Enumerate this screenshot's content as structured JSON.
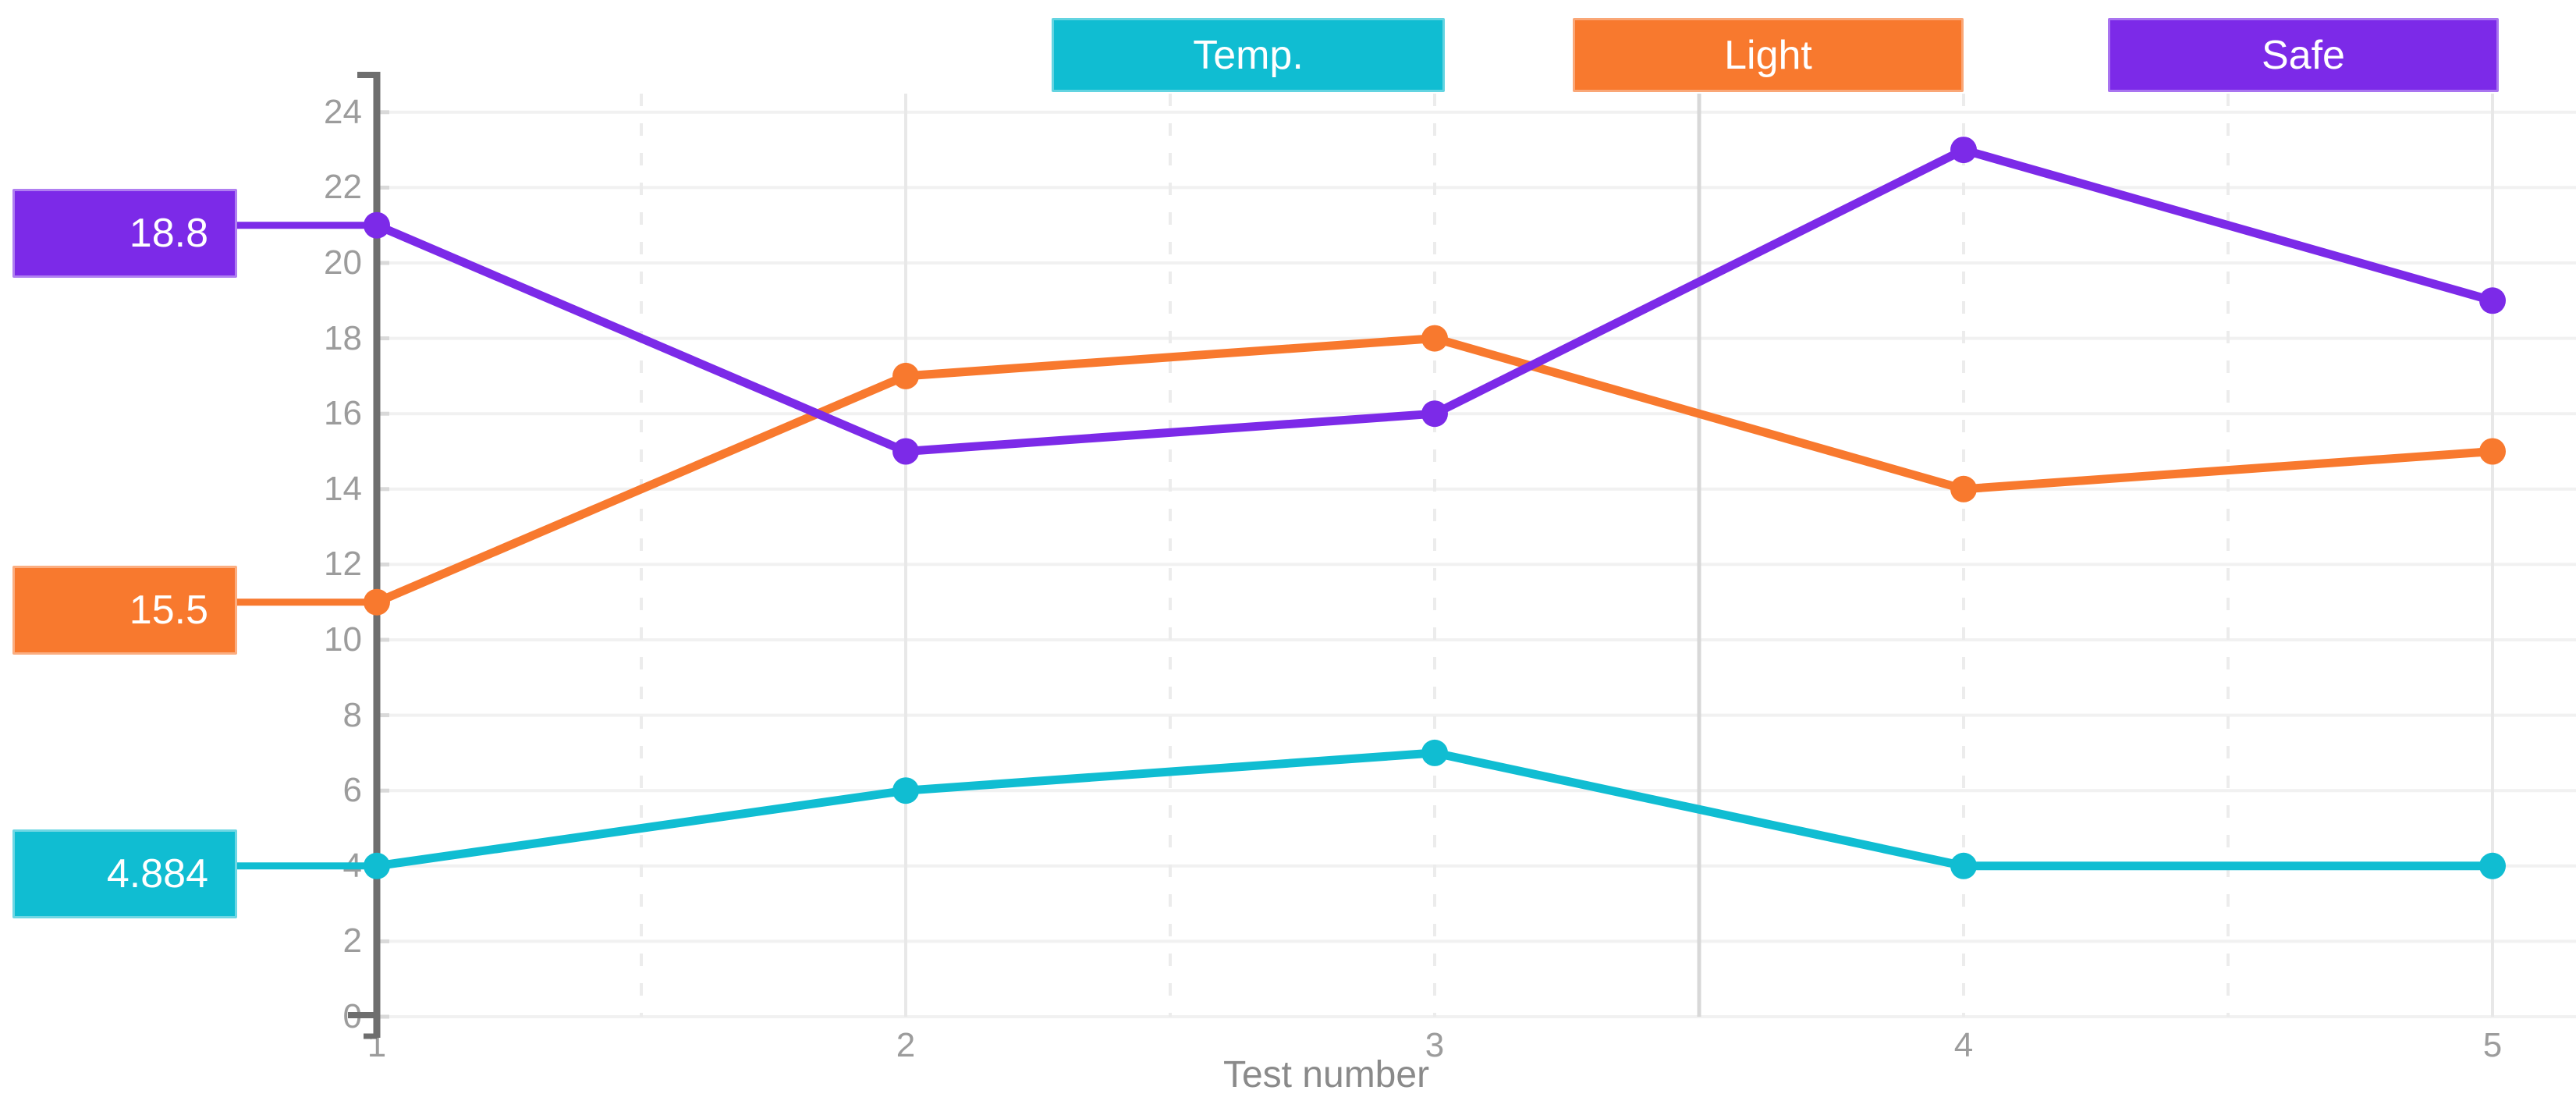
{
  "chart_data": {
    "type": "line",
    "x": [
      1,
      2,
      3,
      4,
      5
    ],
    "x_tick_labels": [
      "1",
      "2",
      "3",
      "4",
      "5"
    ],
    "xlabel": "Test number",
    "y_ticks": [
      0,
      2,
      4,
      6,
      8,
      10,
      12,
      14,
      16,
      18,
      20,
      22,
      24
    ],
    "ylim": [
      0,
      24
    ],
    "xlim": [
      1,
      5
    ],
    "legend_position": "top",
    "grid": {
      "horizontal": "on",
      "vertical_solid_at_x": [
        2,
        5
      ],
      "vertical_dashed_at_x": [
        1.5,
        2.5,
        3,
        4,
        4.5
      ],
      "cursor_line_at_x": 3.5
    },
    "series": [
      {
        "name": "Temp.",
        "color": "#10bdd2",
        "current_label": "4.884",
        "values": [
          4,
          6,
          7,
          4,
          4
        ]
      },
      {
        "name": "Light",
        "color": "#f8792e",
        "current_label": "15.5",
        "values": [
          11,
          17,
          18,
          14,
          15
        ]
      },
      {
        "name": "Safe",
        "color": "#7c2ae8",
        "current_label": "18.8",
        "values": [
          21,
          15,
          16,
          23,
          19
        ]
      }
    ]
  },
  "colors": {
    "axis_line": "#6e6e6e",
    "tick_label": "#9c9c9c",
    "axis_title": "#8a8a8a",
    "grid_horizontal": "#f1f1f1",
    "grid_vertical_solid": "#e8e8e8",
    "grid_vertical_dashed": "#ececec",
    "cursor_line": "#d8d8d8",
    "axis_tick_stub": "#d9d9d9"
  }
}
